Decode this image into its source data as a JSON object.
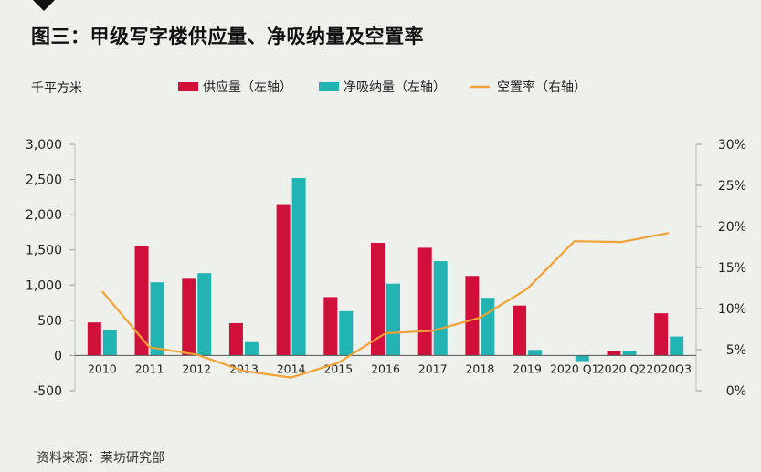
{
  "chart_data": {
    "type": "bar",
    "title": "图三：甲级写字楼供应量、净吸纳量及空置率",
    "ylabel_left": "千平方米",
    "categories": [
      "2010",
      "2011",
      "2012",
      "2013",
      "2014",
      "2015",
      "2016",
      "2017",
      "2018",
      "2019",
      "2020 Q1",
      "2020 Q2",
      "2020Q3"
    ],
    "series": [
      {
        "name": "供应量（左轴）",
        "type": "bar",
        "axis": "left",
        "color": "#d0103a",
        "values": [
          470,
          1550,
          1090,
          460,
          2150,
          830,
          1600,
          1530,
          1130,
          710,
          0,
          60,
          600
        ]
      },
      {
        "name": "净吸纳量（左轴）",
        "type": "bar",
        "axis": "left",
        "color": "#22b3b3",
        "values": [
          360,
          1040,
          1170,
          190,
          2520,
          630,
          1020,
          1340,
          820,
          80,
          -80,
          70,
          270
        ]
      },
      {
        "name": "空置率（右轴）",
        "type": "line",
        "axis": "right",
        "color": "#f0a236",
        "values": [
          12.1,
          5.3,
          4.4,
          2.4,
          1.6,
          3.4,
          7.0,
          7.3,
          8.9,
          12.4,
          18.2,
          18.1,
          19.2
        ]
      }
    ],
    "left_axis": {
      "ticks": [
        3000,
        2500,
        2000,
        1500,
        1000,
        500,
        0,
        -500
      ],
      "tick_labels": [
        "3,000",
        "2,500",
        "2,000",
        "1,500",
        "1,000",
        "500",
        "0",
        "-500"
      ],
      "ylim": [
        -500,
        3000
      ]
    },
    "right_axis": {
      "ticks": [
        30,
        25,
        20,
        15,
        10,
        5,
        0
      ],
      "tick_labels": [
        "30%",
        "25%",
        "20%",
        "15%",
        "10%",
        "5%",
        "0%"
      ],
      "ylim": [
        0,
        30
      ]
    },
    "grid": false,
    "legend_position": "top",
    "source": "资料来源：莱坊研究部"
  }
}
